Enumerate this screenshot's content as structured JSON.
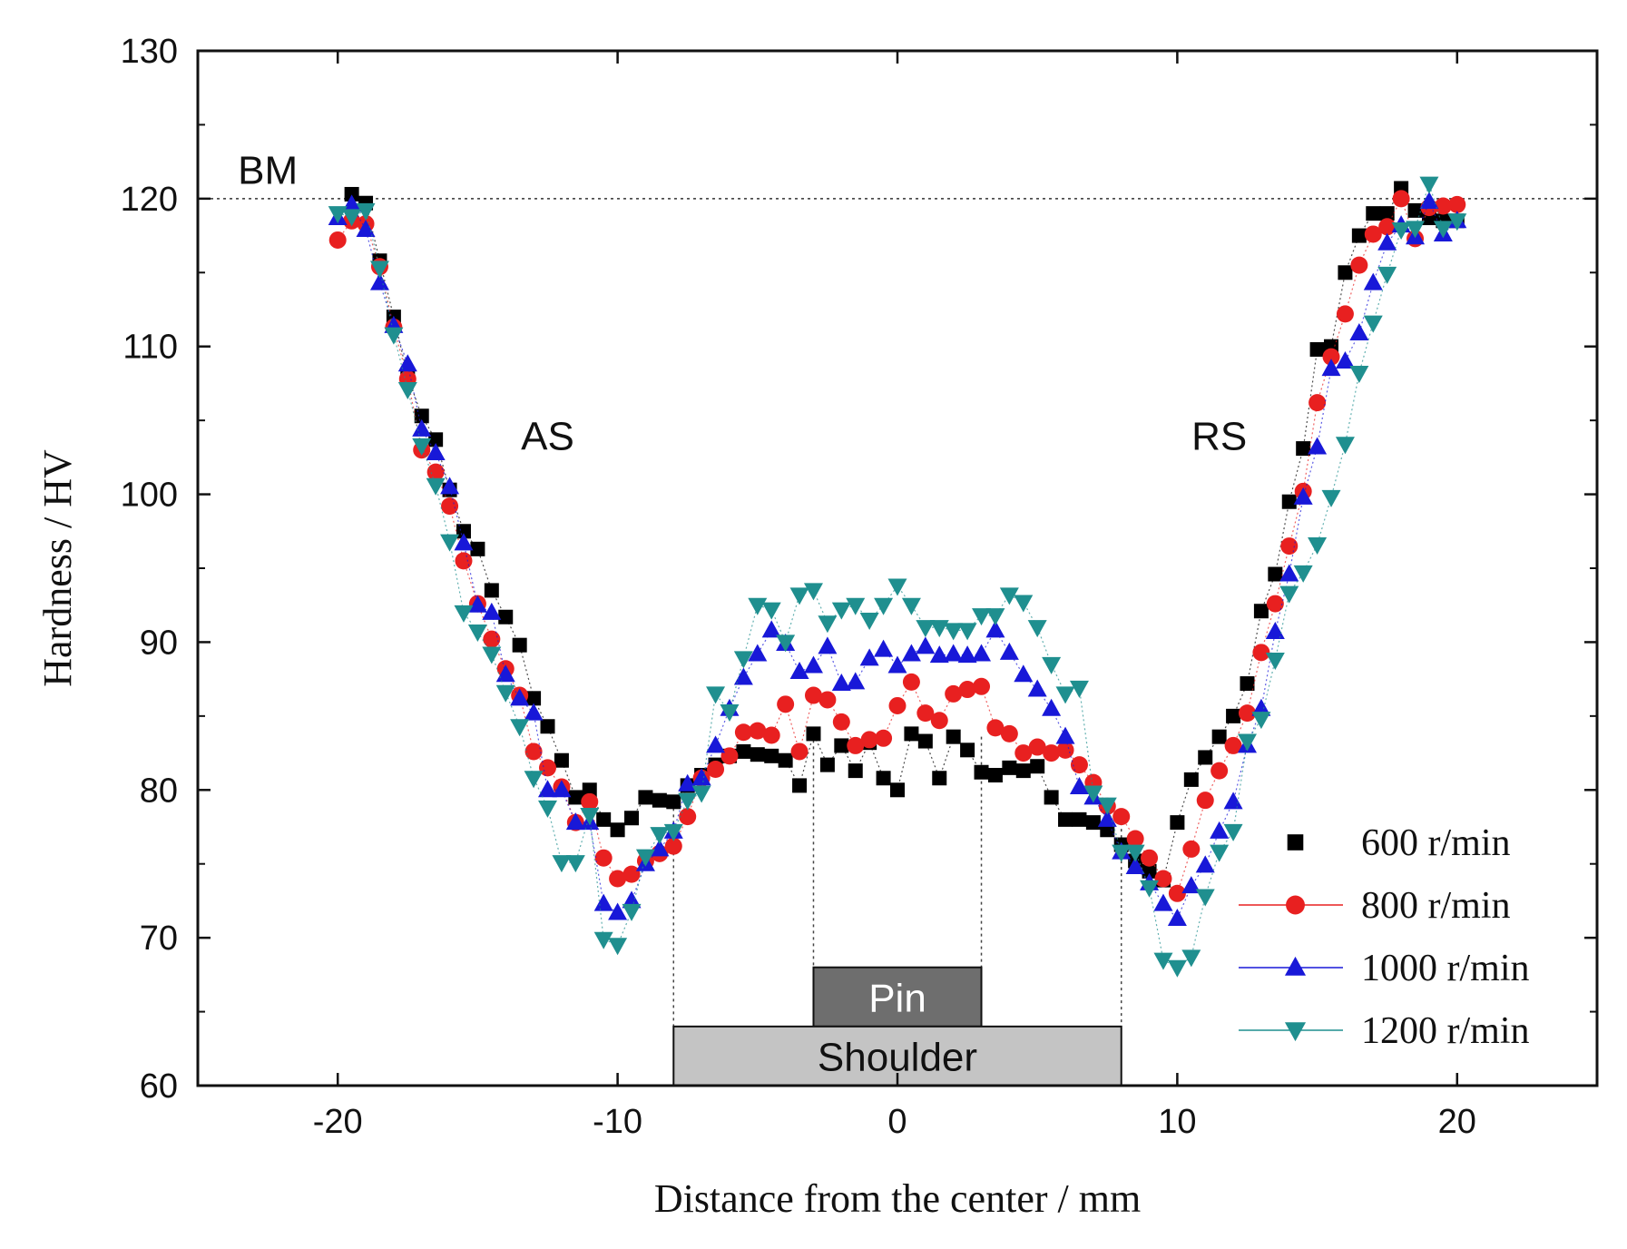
{
  "chart_data": {
    "type": "scatter",
    "title": "",
    "xlabel": "Distance from the center / mm",
    "ylabel": "Hardness / HV",
    "xlim": [
      -25,
      25
    ],
    "ylim": [
      60,
      130
    ],
    "xticks": [
      -20,
      -10,
      0,
      10,
      20
    ],
    "yticks": [
      60,
      70,
      80,
      90,
      100,
      110,
      120,
      130
    ],
    "reference_line": {
      "y": 120,
      "style": "dotted"
    },
    "annotations": [
      {
        "text": "BM",
        "x": -22.5,
        "y": 122
      },
      {
        "text": "AS",
        "x": -12.5,
        "y": 104
      },
      {
        "text": "RS",
        "x": 11.5,
        "y": 104
      }
    ],
    "tool_boxes": [
      {
        "label": "Pin",
        "x0": -3,
        "x1": 3,
        "y0": 64,
        "y1": 68,
        "color": "#6e6e6e",
        "text_color": "#ffffff"
      },
      {
        "label": "Shoulder",
        "x0": -8,
        "x1": 8,
        "y0": 60,
        "y1": 64,
        "color": "#c4c4c4",
        "text_color": "#111111"
      }
    ],
    "legend_position": "bottom-right",
    "series": [
      {
        "name": "600 r/min",
        "marker": "square",
        "color": "#000000",
        "x": [
          -19.5,
          -19,
          -18.5,
          -18,
          -17.5,
          -17,
          -16.5,
          -16,
          -15.5,
          -15,
          -14.5,
          -14,
          -13.5,
          -13,
          -12.5,
          -12,
          -11.5,
          -11,
          -10.5,
          -10,
          -9.5,
          -9,
          -8.5,
          -8,
          -7.5,
          -7,
          -6.5,
          -6,
          -5.5,
          -5,
          -4.5,
          -4,
          -3.5,
          -3,
          -2.5,
          -2,
          -1.5,
          -1,
          -0.5,
          0,
          0.5,
          1,
          1.5,
          2,
          2.5,
          3,
          3.5,
          4,
          4.5,
          5,
          5.5,
          6,
          6.5,
          7,
          7.5,
          8,
          8.5,
          9,
          9.5,
          10,
          10.5,
          11,
          11.5,
          12,
          12.5,
          13,
          13.5,
          14,
          14.5,
          15,
          15.5,
          16,
          16.5,
          17,
          17.5,
          18,
          18.5,
          19,
          19.5,
          20
        ],
        "y": [
          120.3,
          119.7,
          115.8,
          112,
          108,
          105.3,
          103.7,
          100.3,
          97.5,
          96.3,
          93.5,
          91.7,
          89.8,
          86.2,
          84.3,
          82,
          79.5,
          80,
          78,
          77.3,
          78.1,
          79.5,
          79.3,
          79.2,
          80.3,
          81,
          81.7,
          82.3,
          82.6,
          82.4,
          82.3,
          82,
          80.3,
          83.8,
          81.7,
          83,
          81.3,
          83.2,
          80.8,
          80,
          83.8,
          83.3,
          80.8,
          83.6,
          82.7,
          81.2,
          81,
          81.5,
          81.3,
          81.6,
          79.5,
          78,
          78,
          77.8,
          77.3,
          76.3,
          75.2,
          74.5,
          73.9,
          77.8,
          80.7,
          82.2,
          83.6,
          85,
          87.2,
          92.1,
          94.6,
          99.5,
          103.1,
          109.8,
          110,
          115,
          117.5,
          119,
          119,
          120.7,
          119.2,
          118.7,
          118.5,
          118.5
        ]
      },
      {
        "name": "800 r/min",
        "marker": "circle",
        "color": "#e82020",
        "x": [
          -20,
          -19.5,
          -19,
          -18.5,
          -18,
          -17.5,
          -17,
          -16.5,
          -16,
          -15.5,
          -15,
          -14.5,
          -14,
          -13.5,
          -13,
          -12.5,
          -12,
          -11.5,
          -11,
          -10.5,
          -10,
          -9.5,
          -9,
          -8.5,
          -8,
          -7.5,
          -7,
          -6.5,
          -6,
          -5.5,
          -5,
          -4.5,
          -4,
          -3.5,
          -3,
          -2.5,
          -2,
          -1.5,
          -1,
          -0.5,
          0,
          0.5,
          1,
          1.5,
          2,
          2.5,
          3,
          3.5,
          4,
          4.5,
          5,
          5.5,
          6,
          6.5,
          7,
          7.5,
          8,
          8.5,
          9,
          9.5,
          10,
          10.5,
          11,
          11.5,
          12,
          12.5,
          13,
          13.5,
          14,
          14.5,
          15,
          15.5,
          16,
          16.5,
          17,
          17.5,
          18,
          18.5,
          19,
          19.5,
          20
        ],
        "y": [
          117.2,
          118.5,
          118.3,
          115.4,
          111.3,
          107.8,
          103,
          101.5,
          99.2,
          95.5,
          92.6,
          90.2,
          88.2,
          86.4,
          82.6,
          81.5,
          80.2,
          77.8,
          79.2,
          75.4,
          74,
          74.3,
          75.2,
          75.7,
          76.2,
          78.2,
          80.8,
          81.4,
          82.3,
          83.9,
          84,
          83.7,
          85.8,
          82.6,
          86.4,
          86.1,
          84.6,
          83,
          83.4,
          83.5,
          85.7,
          87.3,
          85.2,
          84.7,
          86.5,
          86.8,
          87,
          84.2,
          83.8,
          82.5,
          82.9,
          82.5,
          82.7,
          81.7,
          80.5,
          78.9,
          78.2,
          76.7,
          75.4,
          74,
          73,
          76,
          79.3,
          81.3,
          83,
          85.2,
          89.3,
          92.6,
          96.5,
          100.2,
          106.2,
          109.3,
          112.2,
          115.5,
          117.6,
          118.1,
          120,
          117.3,
          119.4,
          119.5,
          119.6
        ]
      },
      {
        "name": "1000 r/min",
        "marker": "triangle-up",
        "color": "#1818d8",
        "x": [
          -20,
          -19.5,
          -19,
          -18.5,
          -18,
          -17.5,
          -17,
          -16.5,
          -16,
          -15.5,
          -15,
          -14.5,
          -14,
          -13.5,
          -13,
          -12.5,
          -12,
          -11.5,
          -11,
          -10.5,
          -10,
          -9.5,
          -9,
          -8.5,
          -8,
          -7.5,
          -7,
          -6.5,
          -6,
          -5.5,
          -5,
          -4.5,
          -4,
          -3.5,
          -3,
          -2.5,
          -2,
          -1.5,
          -1,
          -0.5,
          0,
          0.5,
          1,
          1.5,
          2,
          2.5,
          3,
          3.5,
          4,
          4.5,
          5,
          5.5,
          6,
          6.5,
          7,
          7.5,
          8,
          8.5,
          9,
          9.5,
          10,
          10.5,
          11,
          11.5,
          12,
          12.5,
          13,
          13.5,
          14,
          14.5,
          15,
          15.5,
          16,
          16.5,
          17,
          17.5,
          18,
          18.5,
          19,
          19.5,
          20
        ],
        "y": [
          118.7,
          119.6,
          117.9,
          114.3,
          111.4,
          108.8,
          104.4,
          102.8,
          100.5,
          96.7,
          92.5,
          92,
          87.8,
          86.2,
          85.2,
          80,
          80,
          77.8,
          77.8,
          72.3,
          71.7,
          72.5,
          75,
          76,
          77.2,
          80.4,
          80.8,
          83,
          85.5,
          87.6,
          89.2,
          90.8,
          89.9,
          88,
          88.4,
          89.7,
          87.2,
          87.3,
          88.9,
          89.5,
          88.4,
          89.2,
          89.7,
          89.1,
          89.2,
          89.1,
          89.2,
          90.8,
          89.3,
          87.8,
          86.8,
          85.5,
          83.6,
          80.2,
          79.5,
          78,
          75.8,
          74.8,
          73.7,
          72.3,
          71.3,
          73.5,
          74.9,
          77.2,
          79.2,
          83,
          85.5,
          90.7,
          94.6,
          99.8,
          103.2,
          108.5,
          109,
          110.9,
          114.3,
          117,
          118.2,
          117.4,
          119.8,
          117.6,
          118.5
        ]
      },
      {
        "name": "1200 r/min",
        "marker": "triangle-down",
        "color": "#1f8f8f",
        "x": [
          -20,
          -19.5,
          -19,
          -18.5,
          -18,
          -17.5,
          -17,
          -16.5,
          -16,
          -15.5,
          -15,
          -14.5,
          -14,
          -13.5,
          -13,
          -12.5,
          -12,
          -11.5,
          -11,
          -10.5,
          -10,
          -9.5,
          -9,
          -8.5,
          -8,
          -7.5,
          -7,
          -6.5,
          -6,
          -5.5,
          -5,
          -4.5,
          -4,
          -3.5,
          -3,
          -2.5,
          -2,
          -1.5,
          -1,
          -0.5,
          0,
          0.5,
          1,
          1.5,
          2,
          2.5,
          3,
          3.5,
          4,
          4.5,
          5,
          5.5,
          6,
          6.5,
          7,
          7.5,
          8,
          8.5,
          9,
          9.5,
          10,
          10.5,
          11,
          11.5,
          12,
          12.5,
          13,
          13.5,
          14,
          14.5,
          15,
          15.5,
          16,
          16.5,
          17,
          17.5,
          18,
          18.5,
          19,
          19.5,
          20
        ],
        "y": [
          119,
          118.8,
          119.2,
          115.3,
          110.8,
          107.1,
          103.3,
          100.6,
          96.8,
          92,
          90.7,
          89.2,
          86.6,
          84.3,
          80.8,
          78.8,
          75.1,
          75.1,
          78.3,
          69.9,
          69.5,
          71.8,
          75.5,
          77,
          77.2,
          79.3,
          79.8,
          86.5,
          85.3,
          88.9,
          92.5,
          92.2,
          90,
          93.2,
          93.5,
          91.3,
          92.2,
          92.5,
          91.5,
          92.5,
          93.8,
          92.5,
          91,
          91,
          90.8,
          90.8,
          91.8,
          91.8,
          93.2,
          92.7,
          91,
          88.5,
          86.5,
          86.9,
          79.8,
          79,
          75.8,
          75.8,
          73.4,
          68.5,
          68,
          68.7,
          72.8,
          75.8,
          77.2,
          83.3,
          84.8,
          88.8,
          93.3,
          94.7,
          96.6,
          99.8,
          103.4,
          108.2,
          111.6,
          114.9,
          117.9,
          118,
          121,
          118,
          118.5
        ]
      }
    ]
  }
}
